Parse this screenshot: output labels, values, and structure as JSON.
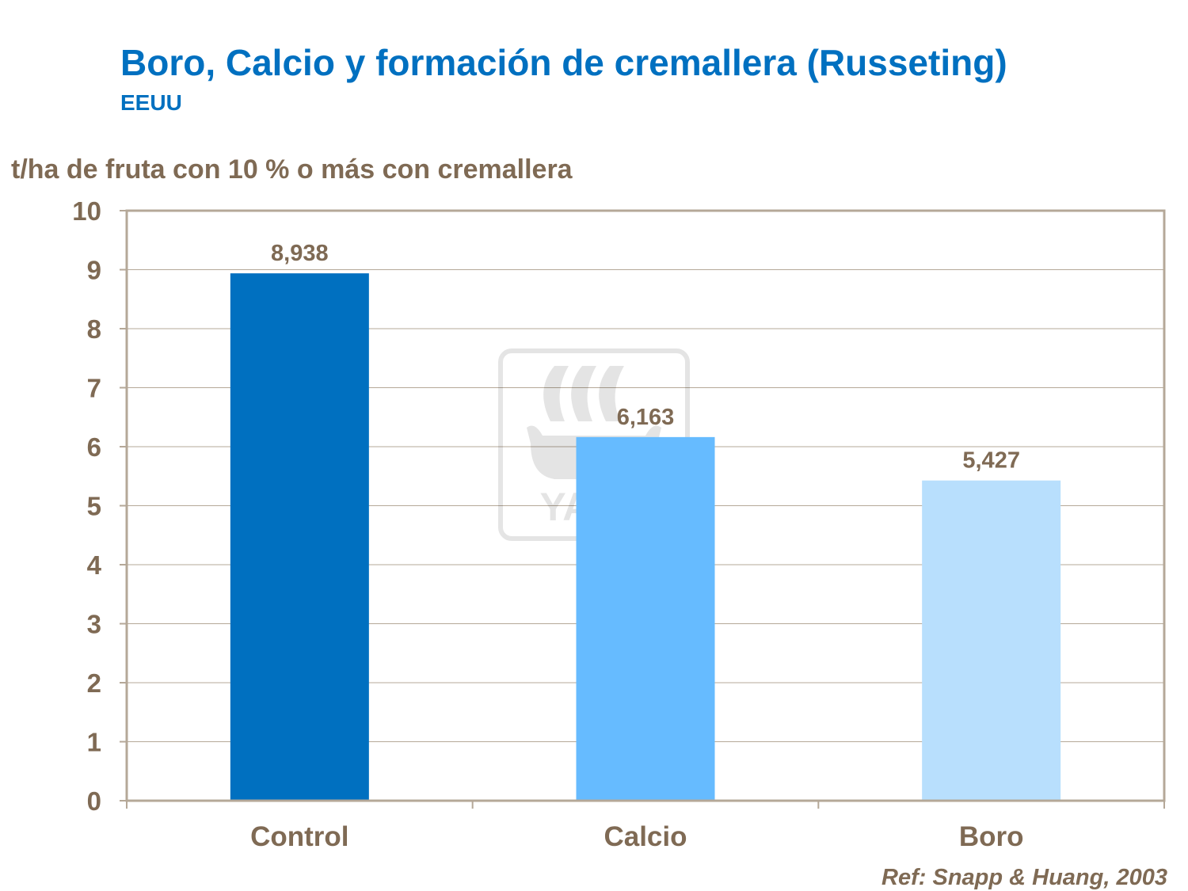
{
  "header": {
    "title": "Boro, Calcio y formación de cremallera (Russeting)",
    "subtitle": "EEUU"
  },
  "watermark": {
    "text": "YARA"
  },
  "reference": "Ref: Snapp & Huang, 2003",
  "chart_data": {
    "type": "bar",
    "title": "Boro, Calcio y formación de cremallera (Russeting)",
    "subtitle": "EEUU",
    "ylabel": "t/ha de fruta con 10 % o más con cremallera",
    "xlabel": "",
    "categories": [
      "Control",
      "Calcio",
      "Boro"
    ],
    "values": [
      8.938,
      6.163,
      5.427
    ],
    "data_labels": [
      "8,938",
      "6,163",
      "5,427"
    ],
    "bar_colors": [
      "#0070c0",
      "#66bbff",
      "#b8dffd"
    ],
    "ylim": [
      0,
      10
    ],
    "yticks": [
      0,
      1,
      2,
      3,
      4,
      5,
      6,
      7,
      8,
      9,
      10
    ],
    "grid": true,
    "legend": "none",
    "colors": {
      "text": "#7f6a54",
      "title": "#0070c0",
      "grid": "#b5a898"
    }
  }
}
